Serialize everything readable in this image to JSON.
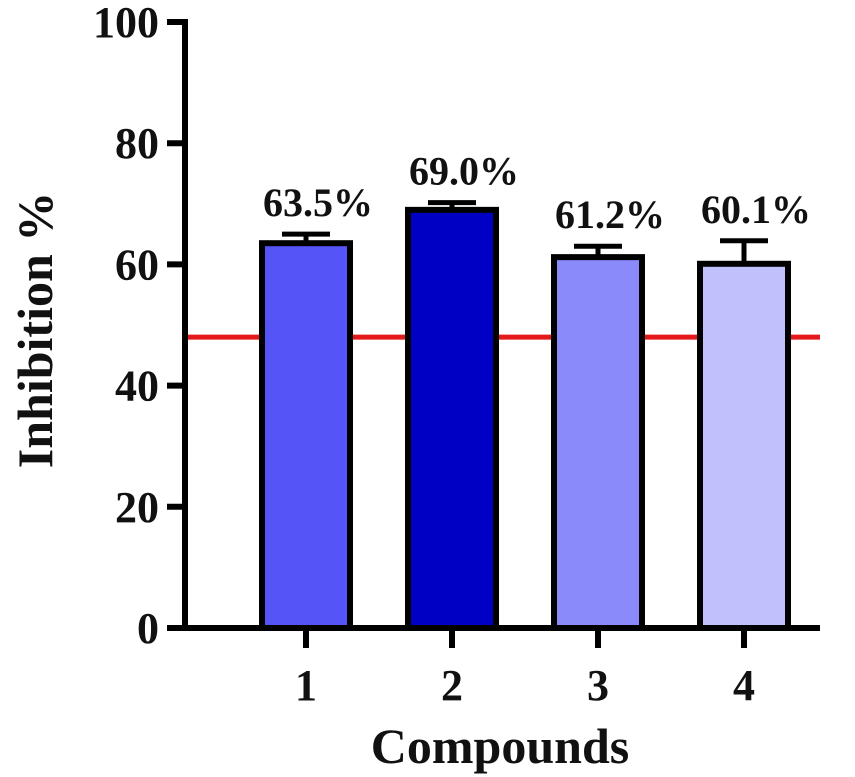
{
  "chart_data": {
    "type": "bar",
    "title": "",
    "xlabel": "Compounds",
    "ylabel": "Inhibition %",
    "ylim": [
      0,
      100
    ],
    "yticks": [
      "0",
      "20",
      "40",
      "60",
      "80",
      "100"
    ],
    "categories": [
      "1",
      "2",
      "3",
      "4"
    ],
    "values": [
      63.5,
      69.0,
      61.2,
      60.1
    ],
    "error": [
      1.5,
      1.2,
      1.8,
      3.8
    ],
    "data_labels": [
      "63.5%",
      "69.0%",
      "61.2%",
      "60.1%"
    ],
    "bar_colors": [
      "#5555f7",
      "#0000c4",
      "#8a8afb",
      "#c0c0fd"
    ],
    "reference_line": {
      "value": 48,
      "color": "#e41a1a"
    },
    "grid": false,
    "legend": "none"
  }
}
